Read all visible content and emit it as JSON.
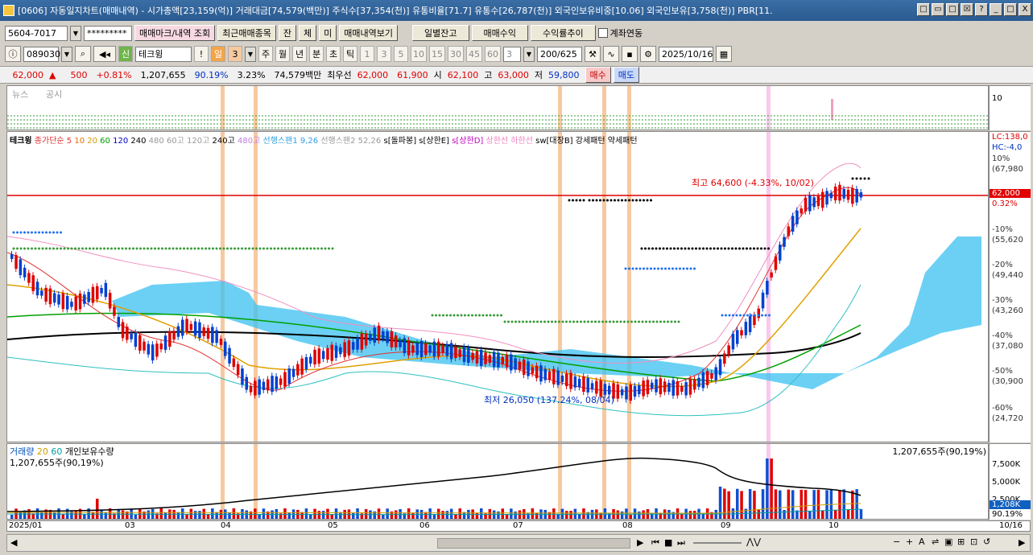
{
  "window": {
    "title": "[0606] 자동일지차트(매매내역) - 시가총액[23,159(억)] 거래대금[74,579(백만)] 주식수[37,354(천)] 유통비율[71.7] 유통수[26,787(천)] 외국인보유비중[10.06] 외국인보유[3,758(천)] PBR[11.",
    "buttons": [
      "□",
      "▭",
      "□",
      "☒",
      "?",
      "_",
      "□",
      "X"
    ]
  },
  "toolbar1": {
    "account": "5604-7017",
    "password": "*********",
    "trade_mark_btn": "매매마크/내역 조회",
    "recent_trades_btn": "최근매매종목",
    "jan": "잔",
    "che": "체",
    "mi": "미",
    "view_trades_btn": "매매내역보기",
    "daily_balance_btn": "일별잔고",
    "trade_profit_btn": "매매수익",
    "return_trend_btn": "수익률추이",
    "account_link_label": "계좌연동"
  },
  "toolbar2": {
    "code": "089030",
    "badge": "신",
    "stock_name": "테크윙",
    "exclaim": "!",
    "period_day": "일",
    "period_num": "3",
    "periods": [
      "주",
      "월",
      "년",
      "분",
      "초",
      "틱"
    ],
    "intervals": [
      "1",
      "3",
      "5",
      "10",
      "15",
      "30",
      "45",
      "60"
    ],
    "sel_interval": "3",
    "count": "200/625",
    "date": "2025/10/16"
  },
  "quote": {
    "price": "62,000",
    "arrow": "▲",
    "change": "500",
    "change_pct": "+0.81%",
    "volume": "1,207,655",
    "ratio1": "90.19%",
    "ratio2": "3.23%",
    "amount": "74,579백만",
    "best": "최우선",
    "ask": "62,000",
    "bid": "61,900",
    "open_label": "시",
    "open": "62,100",
    "high_label": "고",
    "high": "63,000",
    "low_label": "저",
    "low": "59,800",
    "buy_btn": "매수",
    "sell_btn": "매도"
  },
  "news_panel": {
    "news_label": "뉴스",
    "notice_label": "공시",
    "axis_label": "10"
  },
  "legend": {
    "name": "테크윙",
    "items": [
      "종가단순 5",
      "10",
      "20",
      "60",
      "120",
      "240",
      "480",
      "60고",
      "120고",
      "240고",
      "480고",
      "선행스팬1 9,26",
      "선행스팬2 52,26",
      "s[돌파봉]",
      "s[상한E]",
      "s[상한D]",
      "상한선",
      "하한선",
      "sw[대장B]",
      "강세패턴",
      "약세패턴"
    ]
  },
  "annotations": {
    "high": "최고 64,600 (-4.33%, 10/02)",
    "low": "최저 26,050 (137.24%, 08/04)"
  },
  "price_axis": {
    "lc": "LC:138,0",
    "hc": "HC:-4,0",
    "current": "62,000",
    "current_pct": "0.32%",
    "ticks": [
      {
        "pct": "10%",
        "price": "(67,980"
      },
      {
        "pct": "-10%",
        "price": "(55,620"
      },
      {
        "pct": "-20%",
        "price": "(49,440"
      },
      {
        "pct": "-30%",
        "price": "(43,260"
      },
      {
        "pct": "-40%",
        "price": "(37,080"
      },
      {
        "pct": "-50%",
        "price": "(30,900"
      },
      {
        "pct": "-60%",
        "price": "(24,720"
      }
    ]
  },
  "volume_panel": {
    "legend_label": "거래량",
    "ma1": "20",
    "ma2": "60",
    "holding_label": "개인보유수량",
    "top_left": "1,207,655주(90,19%)",
    "top_right": "1,207,655주(90,19%)",
    "ticks": [
      "7,500K",
      "5,000K",
      "2,500K"
    ],
    "cur_vol": "1,208K",
    "cur_pct": "90.19%"
  },
  "x_axis": {
    "labels": [
      "2025/01",
      "03",
      "04",
      "05",
      "06",
      "07",
      "08",
      "09",
      "10",
      "10/16"
    ]
  },
  "chart_data": {
    "type": "candlestick",
    "note_free": "",
    "x": [
      "2025/01",
      "03",
      "04",
      "05",
      "06",
      "07",
      "08",
      "09",
      "10"
    ],
    "close_approx": [
      48000,
      41000,
      33000,
      37000,
      36000,
      34000,
      27000,
      38000,
      62000
    ],
    "high": {
      "value": 64600,
      "pct": "-4.33%",
      "date": "10/02"
    },
    "low": {
      "value": 26050,
      "pct": "137.24%",
      "date": "08/04"
    },
    "current": 62000,
    "price_ticks_pct": [
      "10%",
      "-10%",
      "-20%",
      "-30%",
      "-40%",
      "-50%",
      "-60%"
    ],
    "price_ticks": [
      67980,
      55620,
      49440,
      43260,
      37080,
      30900,
      24720
    ],
    "volume_ticks": [
      "7,500K",
      "5,000K",
      "2,500K"
    ]
  }
}
